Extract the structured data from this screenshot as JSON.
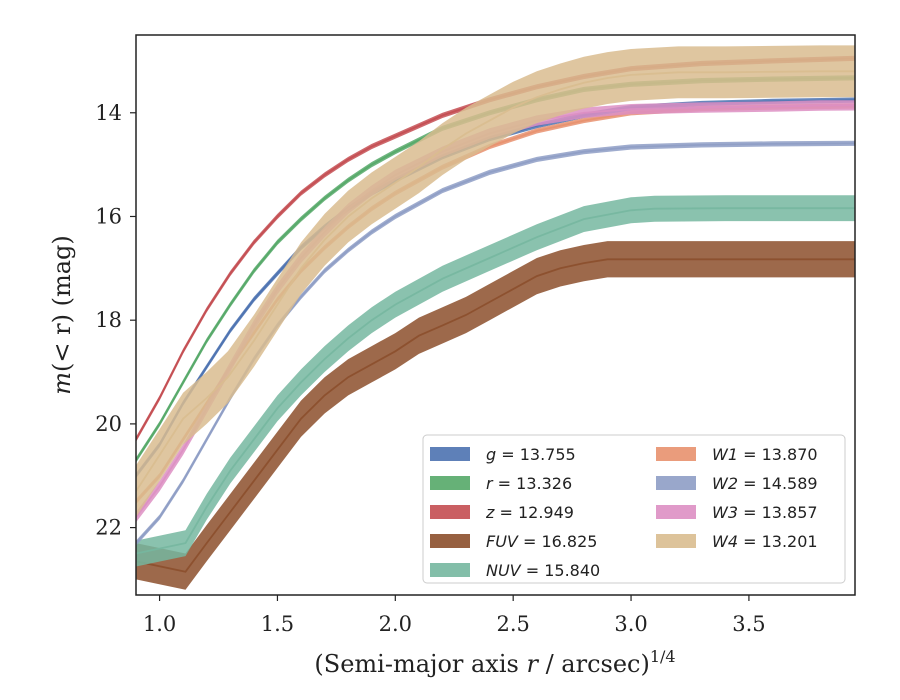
{
  "chart_data": {
    "type": "line",
    "xlabel_main": "(Semi-major axis ",
    "xlabel_var": "r",
    "xlabel_unit": " / arcsec)",
    "xlabel_exp": "1/4",
    "ylabel_prefix": "m",
    "ylabel_arg": "(< r)",
    "ylabel_unit": " (mag)",
    "xlim": [
      0.9,
      3.95
    ],
    "ylim": [
      23.3,
      12.5
    ],
    "xticks": [
      "1.0",
      "1.5",
      "2.0",
      "2.5",
      "3.0",
      "3.5"
    ],
    "xtick_values": [
      1.0,
      1.5,
      2.0,
      2.5,
      3.0,
      3.5
    ],
    "yticks": [
      "14",
      "16",
      "18",
      "20",
      "22"
    ],
    "ytick_values": [
      14,
      16,
      18,
      20,
      22
    ],
    "legend_placement": "lower-right",
    "series": [
      {
        "name": "g = 13.755",
        "label_var": "g",
        "label_val": "= 13.755",
        "color": "#4c72b0",
        "band": 0.05,
        "x": [
          0.9,
          1.0,
          1.1,
          1.2,
          1.3,
          1.4,
          1.5,
          1.6,
          1.7,
          1.8,
          1.9,
          2.0,
          2.2,
          2.4,
          2.6,
          2.8,
          3.0,
          3.3,
          3.6,
          3.95
        ],
        "y": [
          21.0,
          20.4,
          19.6,
          18.9,
          18.2,
          17.6,
          17.1,
          16.6,
          16.2,
          15.85,
          15.55,
          15.3,
          14.85,
          14.5,
          14.25,
          14.05,
          13.9,
          13.82,
          13.78,
          13.755
        ]
      },
      {
        "name": "r = 13.326",
        "label_var": "r",
        "label_val": "= 13.326",
        "color": "#55a868",
        "band": 0.05,
        "x": [
          0.9,
          1.0,
          1.1,
          1.2,
          1.3,
          1.4,
          1.5,
          1.6,
          1.7,
          1.8,
          1.9,
          2.0,
          2.2,
          2.4,
          2.6,
          2.8,
          3.0,
          3.3,
          3.6,
          3.95
        ],
        "y": [
          20.7,
          20.0,
          19.2,
          18.4,
          17.7,
          17.05,
          16.5,
          16.05,
          15.65,
          15.3,
          15.0,
          14.75,
          14.3,
          14.0,
          13.75,
          13.55,
          13.45,
          13.38,
          13.35,
          13.326
        ]
      },
      {
        "name": "z = 12.949",
        "label_var": "z",
        "label_val": "= 12.949",
        "color": "#c44e52",
        "band": 0.05,
        "x": [
          0.9,
          1.0,
          1.1,
          1.2,
          1.3,
          1.4,
          1.5,
          1.6,
          1.7,
          1.8,
          1.9,
          2.0,
          2.2,
          2.4,
          2.6,
          2.8,
          3.0,
          3.3,
          3.6,
          3.95
        ],
        "y": [
          20.3,
          19.5,
          18.6,
          17.8,
          17.1,
          16.5,
          16.0,
          15.55,
          15.2,
          14.9,
          14.65,
          14.45,
          14.05,
          13.75,
          13.5,
          13.3,
          13.15,
          13.05,
          13.0,
          12.949
        ]
      },
      {
        "name": "FUV = 16.825",
        "label_var": "FUV",
        "label_val": "= 16.825",
        "color": "#8c4f2c",
        "band": 0.35,
        "x": [
          0.9,
          1.11,
          1.2,
          1.3,
          1.4,
          1.5,
          1.6,
          1.7,
          1.8,
          1.9,
          2.0,
          2.1,
          2.2,
          2.3,
          2.4,
          2.5,
          2.6,
          2.7,
          2.8,
          2.9,
          3.2,
          3.5,
          3.95
        ],
        "y": [
          22.65,
          22.85,
          22.3,
          21.7,
          21.1,
          20.5,
          19.9,
          19.45,
          19.1,
          18.85,
          18.6,
          18.3,
          18.1,
          17.9,
          17.65,
          17.4,
          17.15,
          17.0,
          16.9,
          16.825,
          16.825,
          16.825,
          16.825
        ]
      },
      {
        "name": "NUV = 15.840",
        "label_var": "NUV",
        "label_val": "= 15.840",
        "color": "#76b7a0",
        "band": 0.25,
        "x": [
          0.9,
          1.11,
          1.2,
          1.3,
          1.4,
          1.5,
          1.6,
          1.7,
          1.8,
          1.9,
          2.0,
          2.2,
          2.4,
          2.6,
          2.8,
          3.0,
          3.1,
          3.4,
          3.95
        ],
        "y": [
          22.5,
          22.3,
          21.6,
          20.9,
          20.3,
          19.7,
          19.2,
          18.75,
          18.35,
          18.0,
          17.7,
          17.2,
          16.8,
          16.4,
          16.05,
          15.88,
          15.85,
          15.84,
          15.84
        ]
      },
      {
        "name": "W1 = 13.870",
        "label_var": "W1",
        "label_val": "= 13.870",
        "color": "#e8916e",
        "band": 0.05,
        "x": [
          0.9,
          1.0,
          1.1,
          1.2,
          1.3,
          1.4,
          1.5,
          1.6,
          1.7,
          1.8,
          1.9,
          2.0,
          2.2,
          2.4,
          2.6,
          2.8,
          3.0,
          3.3,
          3.6,
          3.95
        ],
        "y": [
          21.5,
          21.0,
          20.3,
          19.6,
          18.9,
          18.25,
          17.6,
          17.05,
          16.6,
          16.2,
          15.85,
          15.55,
          15.05,
          14.65,
          14.35,
          14.15,
          14.0,
          13.92,
          13.89,
          13.87
        ]
      },
      {
        "name": "W2 = 14.589",
        "label_var": "W2",
        "label_val": "= 14.589",
        "color": "#8e9dc5",
        "band": 0.05,
        "x": [
          0.9,
          1.0,
          1.1,
          1.2,
          1.3,
          1.4,
          1.5,
          1.6,
          1.7,
          1.8,
          1.9,
          2.0,
          2.2,
          2.4,
          2.6,
          2.8,
          3.0,
          3.3,
          3.6,
          3.95
        ],
        "y": [
          22.3,
          21.8,
          21.1,
          20.3,
          19.5,
          18.75,
          18.1,
          17.55,
          17.05,
          16.65,
          16.3,
          16.0,
          15.5,
          15.15,
          14.9,
          14.75,
          14.66,
          14.62,
          14.6,
          14.589
        ]
      },
      {
        "name": "W3 = 13.857",
        "label_var": "W3",
        "label_val": "= 13.857",
        "color": "#dd8fc3",
        "band": 0.1,
        "x": [
          0.9,
          1.0,
          1.1,
          1.2,
          1.3,
          1.4,
          1.5,
          1.6,
          1.7,
          1.8,
          1.9,
          2.0,
          2.2,
          2.4,
          2.6,
          2.8,
          3.0,
          3.3,
          3.6,
          3.8,
          3.95
        ],
        "y": [
          21.8,
          21.2,
          20.5,
          19.7,
          18.9,
          18.1,
          17.4,
          16.8,
          16.3,
          15.85,
          15.5,
          15.2,
          14.75,
          14.4,
          14.15,
          14.0,
          13.93,
          13.9,
          13.88,
          13.86,
          13.857
        ]
      },
      {
        "name": "W4 = 13.201",
        "label_var": "W4",
        "label_val": "= 13.201",
        "color": "#d9bc8f",
        "band": 0.5,
        "x": [
          0.9,
          1.0,
          1.1,
          1.2,
          1.29,
          1.4,
          1.5,
          1.6,
          1.7,
          1.8,
          1.9,
          2.0,
          2.1,
          2.2,
          2.3,
          2.4,
          2.5,
          2.6,
          2.7,
          2.8,
          2.9,
          3.0,
          3.2,
          3.4,
          3.6,
          3.8,
          3.95
        ],
        "y": [
          21.3,
          20.6,
          19.9,
          19.5,
          19.1,
          18.4,
          17.7,
          17.0,
          16.45,
          16.0,
          15.65,
          15.35,
          15.05,
          14.7,
          14.4,
          14.15,
          13.9,
          13.7,
          13.55,
          13.42,
          13.33,
          13.27,
          13.22,
          13.22,
          13.21,
          13.2,
          13.201
        ]
      }
    ]
  }
}
